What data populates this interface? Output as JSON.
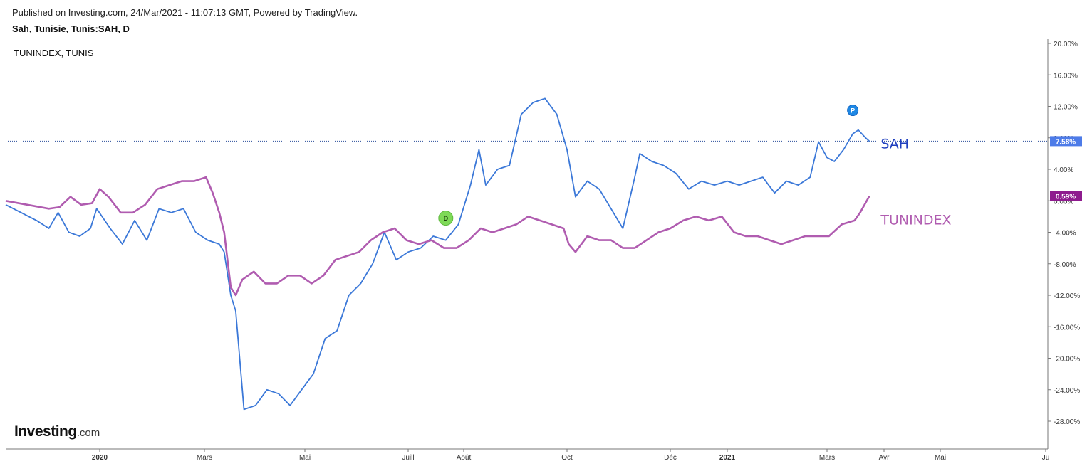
{
  "header": {
    "published": "Published on Investing.com, 24/Mar/2021 - 11:07:13 GMT, Powered by TradingView.",
    "symbol": "Sah, Tunisie, Tunis:SAH, D",
    "compare": "TUNINDEX, TUNIS"
  },
  "logo": {
    "main": "Investing",
    "tld": ".com"
  },
  "chart_data": {
    "type": "line",
    "ylim": [
      -32,
      22
    ],
    "y_ticks": [
      20,
      16,
      12,
      8,
      4,
      0,
      -4,
      -8,
      -12,
      -16,
      -20,
      -24,
      -28
    ],
    "y_tick_labels": [
      "20.00%",
      "16.00%",
      "12.00%",
      "8.00%",
      "4.00%",
      "0.00%",
      "-4.00%",
      "-8.00%",
      "-12.00%",
      "-16.00%",
      "-20.00%",
      "-24.00%",
      "-28.00%"
    ],
    "x_axis_labels": [
      "2020",
      "Mars",
      "Mai",
      "Juill",
      "Août",
      "Oct",
      "Déc",
      "2021",
      "Mars",
      "Avr",
      "Mai",
      "Ju"
    ],
    "bold_x_labels": [
      "2020",
      "2021"
    ],
    "x_label_dates": [
      "2020-01-01",
      "2020-03-01",
      "2020-05-01",
      "2020-07-01",
      "2020-08-01",
      "2020-10-01",
      "2020-12-01",
      "2021-01-01",
      "2021-03-01",
      "2021-04-01",
      "2021-05-01",
      "2021-06-01"
    ],
    "series": [
      {
        "name": "SAH",
        "color": "#3b78d8",
        "last_value_label": "7.58%",
        "points": [
          [
            "2019-11-01",
            -0.5
          ],
          [
            "2019-11-11",
            -1.5
          ],
          [
            "2019-11-21",
            -2.5
          ],
          [
            "2019-11-29",
            -3.5
          ],
          [
            "2019-12-05",
            -1.5
          ],
          [
            "2019-12-12",
            -4.0
          ],
          [
            "2019-12-19",
            -4.5
          ],
          [
            "2019-12-26",
            -3.5
          ],
          [
            "2019-12-30",
            -1.0
          ],
          [
            "2020-01-07",
            -3.5
          ],
          [
            "2020-01-14",
            -5.5
          ],
          [
            "2020-01-21",
            -2.5
          ],
          [
            "2020-01-28",
            -5.0
          ],
          [
            "2020-02-04",
            -1.0
          ],
          [
            "2020-02-11",
            -1.5
          ],
          [
            "2020-02-18",
            -1.0
          ],
          [
            "2020-02-25",
            -4.0
          ],
          [
            "2020-03-03",
            -5.0
          ],
          [
            "2020-03-10",
            -5.5
          ],
          [
            "2020-03-13",
            -6.5
          ],
          [
            "2020-03-17",
            -12.0
          ],
          [
            "2020-03-20",
            -14.0
          ],
          [
            "2020-03-25",
            -26.5
          ],
          [
            "2020-04-01",
            -26.0
          ],
          [
            "2020-04-08",
            -24.0
          ],
          [
            "2020-04-15",
            -24.5
          ],
          [
            "2020-04-22",
            -26.0
          ],
          [
            "2020-04-29",
            -24.0
          ],
          [
            "2020-05-06",
            -22.0
          ],
          [
            "2020-05-13",
            -17.5
          ],
          [
            "2020-05-20",
            -16.5
          ],
          [
            "2020-05-27",
            -12.0
          ],
          [
            "2020-06-03",
            -10.5
          ],
          [
            "2020-06-10",
            -8.0
          ],
          [
            "2020-06-17",
            -4.0
          ],
          [
            "2020-06-24",
            -7.5
          ],
          [
            "2020-07-01",
            -6.5
          ],
          [
            "2020-07-08",
            -6.0
          ],
          [
            "2020-07-15",
            -4.5
          ],
          [
            "2020-07-22",
            -5.0
          ],
          [
            "2020-07-29",
            -3.0
          ],
          [
            "2020-08-05",
            2.0
          ],
          [
            "2020-08-10",
            6.5
          ],
          [
            "2020-08-14",
            2.0
          ],
          [
            "2020-08-21",
            4.0
          ],
          [
            "2020-08-28",
            4.5
          ],
          [
            "2020-09-04",
            11.0
          ],
          [
            "2020-09-11",
            12.5
          ],
          [
            "2020-09-18",
            13.0
          ],
          [
            "2020-09-25",
            11.0
          ],
          [
            "2020-10-01",
            6.5
          ],
          [
            "2020-10-06",
            0.5
          ],
          [
            "2020-10-13",
            2.5
          ],
          [
            "2020-10-20",
            1.5
          ],
          [
            "2020-10-27",
            -1.0
          ],
          [
            "2020-11-03",
            -3.5
          ],
          [
            "2020-11-10",
            3.0
          ],
          [
            "2020-11-13",
            6.0
          ],
          [
            "2020-11-20",
            5.0
          ],
          [
            "2020-11-27",
            4.5
          ],
          [
            "2020-12-04",
            3.5
          ],
          [
            "2020-12-11",
            1.5
          ],
          [
            "2020-12-18",
            2.5
          ],
          [
            "2020-12-25",
            2.0
          ],
          [
            "2021-01-01",
            2.5
          ],
          [
            "2021-01-08",
            2.0
          ],
          [
            "2021-01-15",
            2.5
          ],
          [
            "2021-01-22",
            3.0
          ],
          [
            "2021-01-29",
            1.0
          ],
          [
            "2021-02-05",
            2.5
          ],
          [
            "2021-02-12",
            2.0
          ],
          [
            "2021-02-19",
            3.0
          ],
          [
            "2021-02-24",
            7.5
          ],
          [
            "2021-03-01",
            5.5
          ],
          [
            "2021-03-05",
            5.0
          ],
          [
            "2021-03-10",
            6.5
          ],
          [
            "2021-03-15",
            8.5
          ],
          [
            "2021-03-18",
            9.0
          ],
          [
            "2021-03-22",
            8.0
          ],
          [
            "2021-03-24",
            7.58
          ]
        ]
      },
      {
        "name": "TUNINDEX",
        "color": "#b05cb0",
        "last_value_label": "0.59%",
        "points": [
          [
            "2019-11-01",
            0.0
          ],
          [
            "2019-11-15",
            -0.5
          ],
          [
            "2019-11-29",
            -1.0
          ],
          [
            "2019-12-06",
            -0.8
          ],
          [
            "2019-12-13",
            0.5
          ],
          [
            "2019-12-20",
            -0.5
          ],
          [
            "2019-12-27",
            -0.3
          ],
          [
            "2020-01-01",
            1.5
          ],
          [
            "2020-01-06",
            0.5
          ],
          [
            "2020-01-13",
            -1.5
          ],
          [
            "2020-01-20",
            -1.5
          ],
          [
            "2020-01-27",
            -0.5
          ],
          [
            "2020-02-03",
            1.5
          ],
          [
            "2020-02-10",
            2.0
          ],
          [
            "2020-02-17",
            2.5
          ],
          [
            "2020-02-24",
            2.5
          ],
          [
            "2020-03-02",
            3.0
          ],
          [
            "2020-03-06",
            1.0
          ],
          [
            "2020-03-10",
            -1.5
          ],
          [
            "2020-03-13",
            -4.0
          ],
          [
            "2020-03-17",
            -11.0
          ],
          [
            "2020-03-20",
            -12.0
          ],
          [
            "2020-03-24",
            -10.0
          ],
          [
            "2020-03-31",
            -9.0
          ],
          [
            "2020-04-07",
            -10.5
          ],
          [
            "2020-04-14",
            -10.5
          ],
          [
            "2020-04-21",
            -9.5
          ],
          [
            "2020-04-28",
            -9.5
          ],
          [
            "2020-05-05",
            -10.5
          ],
          [
            "2020-05-12",
            -9.5
          ],
          [
            "2020-05-19",
            -7.5
          ],
          [
            "2020-05-26",
            -7.0
          ],
          [
            "2020-06-02",
            -6.5
          ],
          [
            "2020-06-09",
            -5.0
          ],
          [
            "2020-06-16",
            -4.0
          ],
          [
            "2020-06-23",
            -3.5
          ],
          [
            "2020-06-30",
            -5.0
          ],
          [
            "2020-07-07",
            -5.5
          ],
          [
            "2020-07-14",
            -5.0
          ],
          [
            "2020-07-21",
            -6.0
          ],
          [
            "2020-07-28",
            -6.0
          ],
          [
            "2020-08-04",
            -5.0
          ],
          [
            "2020-08-11",
            -3.5
          ],
          [
            "2020-08-18",
            -4.0
          ],
          [
            "2020-08-25",
            -3.5
          ],
          [
            "2020-09-01",
            -3.0
          ],
          [
            "2020-09-08",
            -2.0
          ],
          [
            "2020-09-15",
            -2.5
          ],
          [
            "2020-09-22",
            -3.0
          ],
          [
            "2020-09-29",
            -3.5
          ],
          [
            "2020-10-02",
            -5.5
          ],
          [
            "2020-10-06",
            -6.5
          ],
          [
            "2020-10-13",
            -4.5
          ],
          [
            "2020-10-20",
            -5.0
          ],
          [
            "2020-10-27",
            -5.0
          ],
          [
            "2020-11-03",
            -6.0
          ],
          [
            "2020-11-10",
            -6.0
          ],
          [
            "2020-11-17",
            -5.0
          ],
          [
            "2020-11-24",
            -4.0
          ],
          [
            "2020-12-01",
            -3.5
          ],
          [
            "2020-12-08",
            -2.5
          ],
          [
            "2020-12-15",
            -2.0
          ],
          [
            "2020-12-22",
            -2.5
          ],
          [
            "2020-12-29",
            -2.0
          ],
          [
            "2021-01-05",
            -4.0
          ],
          [
            "2021-01-12",
            -4.5
          ],
          [
            "2021-01-19",
            -4.5
          ],
          [
            "2021-01-26",
            -5.0
          ],
          [
            "2021-02-02",
            -5.5
          ],
          [
            "2021-02-09",
            -5.0
          ],
          [
            "2021-02-16",
            -4.5
          ],
          [
            "2021-02-23",
            -4.5
          ],
          [
            "2021-03-02",
            -4.5
          ],
          [
            "2021-03-09",
            -3.0
          ],
          [
            "2021-03-16",
            -2.5
          ],
          [
            "2021-03-19",
            -1.5
          ],
          [
            "2021-03-24",
            0.59
          ]
        ]
      }
    ],
    "events": [
      {
        "label": "D",
        "date": "2020-07-22",
        "value": -2.2,
        "color": "#7ed957"
      },
      {
        "label": "P",
        "date": "2021-03-15",
        "value": 11.5,
        "color": "#1e88e5"
      }
    ],
    "reference_line": {
      "value": 7.58,
      "color": "#2a4d9b",
      "style": "dotted"
    }
  }
}
